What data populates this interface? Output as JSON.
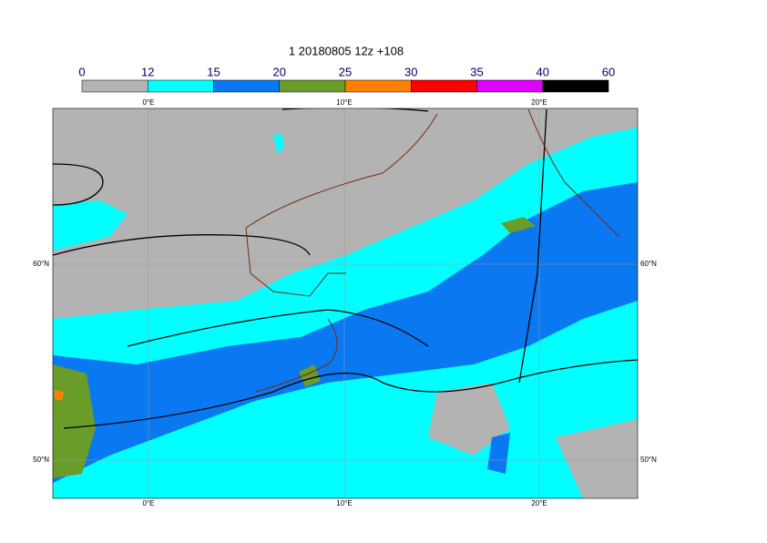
{
  "title": "1 20180805 12z +108",
  "colorbar": {
    "levels": [
      0,
      12,
      15,
      20,
      25,
      30,
      35,
      40,
      60
    ],
    "colors": [
      "#b3b3b3",
      "#00ffff",
      "#0a78f0",
      "#6a9c2a",
      "#ff8000",
      "#ff0000",
      "#e000ff",
      "#000000"
    ]
  },
  "map": {
    "lon_labels": [
      "0°E",
      "10°E",
      "20°E"
    ],
    "lat_labels": [
      "60°N",
      "50°N"
    ]
  }
}
